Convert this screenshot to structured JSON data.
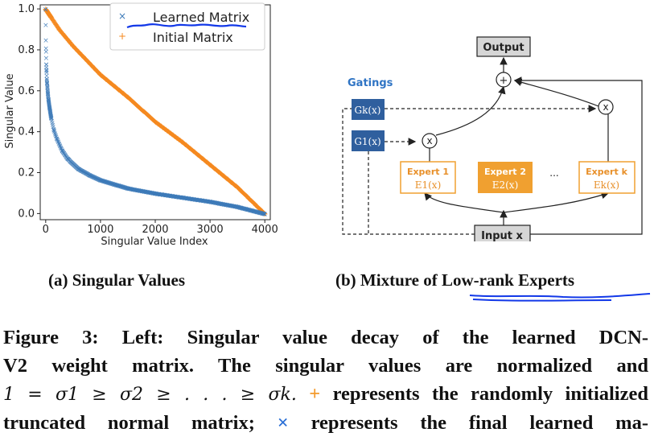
{
  "figure_a": {
    "chart_data": {
      "type": "scatter",
      "xlabel": "Singular Value Index",
      "ylabel": "Singular Value",
      "xlim": [
        -100,
        4100
      ],
      "ylim": [
        -0.03,
        1.02
      ],
      "xticks": [
        "0",
        "1000",
        "2000",
        "3000",
        "4000"
      ],
      "yticks": [
        "0.0",
        "0.2",
        "0.4",
        "0.6",
        "0.8",
        "1.0"
      ],
      "legend_position": "top-right",
      "series": [
        {
          "name": "Learned Matrix",
          "marker": "x",
          "color": "#3d7ab8",
          "points": [
            [
              0,
              1.0
            ],
            [
              5,
              0.81
            ],
            [
              10,
              0.73
            ],
            [
              15,
              0.7
            ],
            [
              20,
              0.66
            ],
            [
              25,
              0.64
            ],
            [
              30,
              0.62
            ],
            [
              40,
              0.59
            ],
            [
              50,
              0.56
            ],
            [
              70,
              0.52
            ],
            [
              100,
              0.47
            ],
            [
              150,
              0.41
            ],
            [
              200,
              0.37
            ],
            [
              300,
              0.31
            ],
            [
              400,
              0.27
            ],
            [
              600,
              0.22
            ],
            [
              800,
              0.19
            ],
            [
              1000,
              0.165
            ],
            [
              1500,
              0.125
            ],
            [
              2000,
              0.1
            ],
            [
              2500,
              0.08
            ],
            [
              3000,
              0.06
            ],
            [
              3500,
              0.035
            ],
            [
              4000,
              0.0
            ]
          ]
        },
        {
          "name": "Initial Matrix",
          "marker": "+",
          "color": "#f5891f",
          "points": [
            [
              0,
              1.0
            ],
            [
              250,
              0.9
            ],
            [
              500,
              0.82
            ],
            [
              1000,
              0.68
            ],
            [
              1500,
              0.57
            ],
            [
              2000,
              0.45
            ],
            [
              2500,
              0.35
            ],
            [
              3000,
              0.24
            ],
            [
              3500,
              0.13
            ],
            [
              4000,
              0.0
            ]
          ]
        }
      ]
    },
    "caption": "(a) Singular Values"
  },
  "figure_b": {
    "diagram": {
      "output_label": "Output",
      "input_label": "Input x",
      "gatings_label": "Gatings",
      "gate_k": "Gk(x)",
      "gate_1": "G1(x)",
      "plus_symbol": "+",
      "times_symbol": "x",
      "ellipsis": "...",
      "experts": [
        {
          "title": "Expert 1",
          "func": "E1(x)"
        },
        {
          "title": "Expert 2",
          "func": "E2(x)"
        },
        {
          "title": "Expert k",
          "func": "Ek(x)"
        }
      ]
    },
    "caption": "(b) Mixture of Low-rank Experts"
  },
  "caption": {
    "line1": "Figure 3: Left: Singular value decay of the learned DCN-",
    "line2": "V2 weight matrix. The singular values are normalized and",
    "line3_math": "1 = σ1 ≥ σ2 ≥ . . . ≥ σk.",
    "line3_plus": "+",
    "line3_text": " represents the randomly initialized",
    "line4_text": "truncated normal matrix; ",
    "line4_times": "×",
    "line4_rest": " represents the final learned ma-"
  },
  "colors": {
    "learned": "#3d7ab8",
    "initial": "#f5891f",
    "gate_fill": "#2f5f9e",
    "expert_orange": "#f0a030",
    "annotation_blue": "#1238e8"
  }
}
